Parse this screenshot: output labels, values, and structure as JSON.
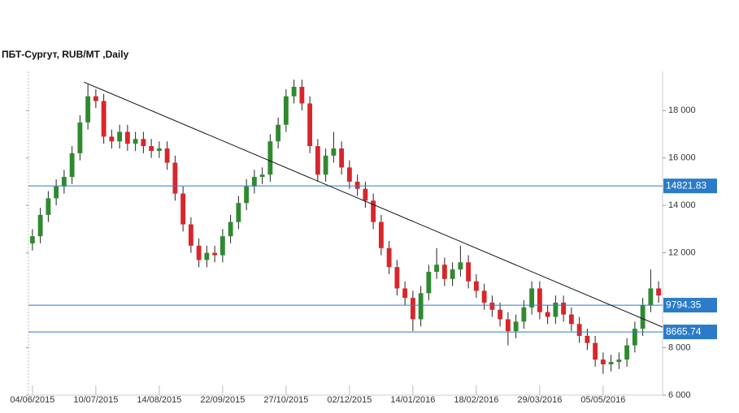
{
  "chart_data": {
    "type": "candlestick",
    "title": "ПБТ-Сургут,  RUB/MT ,Daily",
    "xlim": [
      -0.5,
      79.5
    ],
    "xticks": [
      {
        "value": 0,
        "label": "04/06/2015"
      },
      {
        "value": 8,
        "label": "10/07/2015"
      },
      {
        "value": 16,
        "label": "14/08/2015"
      },
      {
        "value": 24,
        "label": "22/09/2015"
      },
      {
        "value": 32,
        "label": "27/10/2015"
      },
      {
        "value": 40,
        "label": "02/12/2015"
      },
      {
        "value": 48,
        "label": "14/01/2016"
      },
      {
        "value": 56,
        "label": "18/02/2016"
      },
      {
        "value": 64,
        "label": "29/03/2016"
      },
      {
        "value": 72,
        "label": "05/05/2016"
      }
    ],
    "ylim": [
      6000,
      19650
    ],
    "yticks": [
      {
        "value": 6000,
        "label": "6 000"
      },
      {
        "value": 8000,
        "label": "8 000"
      },
      {
        "value": 12000,
        "label": "12 000"
      },
      {
        "value": 14000,
        "label": "14 000"
      },
      {
        "value": 16000,
        "label": "16 000"
      },
      {
        "value": 18000,
        "label": "18 000"
      }
    ],
    "up_color": "#2f8a2f",
    "down_color": "#d8262b",
    "open": [
      12400,
      12700,
      13600,
      14300,
      14800,
      15200,
      16200,
      17500,
      18600,
      18400,
      16900,
      16700,
      17100,
      16600,
      16800,
      16500,
      16300,
      16400,
      15800,
      14500,
      13200,
      12300,
      11700,
      12000,
      11900,
      12700,
      13300,
      14100,
      14800,
      15200,
      15300,
      16700,
      17400,
      18600,
      19000,
      18300,
      16500,
      15300,
      16100,
      16400,
      15600,
      15000,
      14700,
      14200,
      13300,
      12200,
      11400,
      10500,
      10100,
      9200,
      10300,
      11200,
      11500,
      10900,
      11300,
      11600,
      10800,
      10400,
      9900,
      9600,
      9200,
      8700,
      9100,
      9700,
      10500,
      9500,
      9300,
      9900,
      9400,
      9000,
      8500,
      8200,
      7500,
      7300,
      7400,
      7500,
      8100,
      8800,
      9800,
      10500
    ],
    "high": [
      13000,
      13900,
      14600,
      15100,
      15500,
      16500,
      17800,
      19100,
      18900,
      18700,
      17200,
      17400,
      17400,
      17100,
      17100,
      16800,
      16700,
      16700,
      16100,
      14800,
      13500,
      12600,
      12300,
      12300,
      13000,
      13600,
      14400,
      15100,
      15500,
      15600,
      17000,
      17700,
      18900,
      19300,
      19300,
      18600,
      16800,
      16400,
      17100,
      16700,
      15900,
      15300,
      15000,
      14500,
      13600,
      12500,
      11700,
      10800,
      10400,
      10600,
      11500,
      12200,
      11800,
      11600,
      12300,
      11900,
      11100,
      10700,
      10200,
      9900,
      9500,
      9400,
      10000,
      10800,
      10800,
      9800,
      10200,
      10200,
      9700,
      9300,
      8800,
      8500,
      7800,
      7700,
      7800,
      8400,
      9100,
      10100,
      11300,
      10800
    ],
    "low": [
      12100,
      12400,
      13300,
      14000,
      14500,
      14900,
      15900,
      17200,
      18100,
      16600,
      16400,
      16400,
      16300,
      16300,
      16200,
      16000,
      16000,
      15500,
      14200,
      12900,
      12000,
      11400,
      11400,
      11600,
      11600,
      12400,
      13000,
      13800,
      14500,
      14900,
      15000,
      16400,
      17100,
      18300,
      18000,
      16200,
      15000,
      15000,
      15800,
      15300,
      14700,
      14400,
      13900,
      13000,
      11900,
      11100,
      10200,
      9800,
      8700,
      8900,
      10000,
      10900,
      10600,
      10600,
      11000,
      10500,
      10100,
      9600,
      9300,
      8900,
      8100,
      8400,
      8800,
      9400,
      9200,
      9000,
      9000,
      9100,
      8700,
      8200,
      7900,
      7200,
      6900,
      7000,
      7100,
      7200,
      7800,
      8500,
      9500,
      9900
    ],
    "close": [
      12700,
      13600,
      14300,
      14800,
      15200,
      16200,
      17500,
      18600,
      18400,
      16900,
      16700,
      17100,
      16600,
      16800,
      16500,
      16300,
      16400,
      15800,
      14500,
      13200,
      12300,
      11700,
      12000,
      11900,
      12700,
      13300,
      14100,
      14800,
      15200,
      15300,
      16700,
      17400,
      18600,
      19000,
      18300,
      16500,
      15300,
      16100,
      16400,
      15600,
      15000,
      14700,
      14200,
      13300,
      12200,
      11400,
      10500,
      10100,
      9200,
      10300,
      11200,
      11500,
      10900,
      11300,
      11600,
      10800,
      10400,
      9900,
      9600,
      9200,
      8700,
      9100,
      9700,
      10500,
      9500,
      9300,
      9900,
      9400,
      9000,
      8500,
      8200,
      7500,
      7300,
      7400,
      7500,
      8100,
      8800,
      9800,
      10500,
      10200
    ],
    "levels": [
      14821.83,
      9794.35,
      8665.74
    ],
    "level_color": "#2a7bc8",
    "trendline": {
      "x": [
        6.5,
        79.5
      ],
      "y": [
        19200,
        8870
      ]
    }
  }
}
